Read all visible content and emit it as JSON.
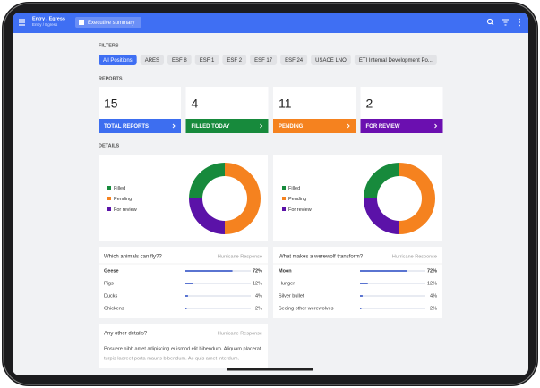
{
  "app_bar": {
    "title": "Entry / Egress",
    "subtitle": "Entry / Egress",
    "view": "Executive summary"
  },
  "filters": {
    "label": "FILTERS",
    "selected": 0,
    "chips": [
      "All Positions",
      "ARES",
      "ESF 8",
      "ESF 1",
      "ESF 2",
      "ESF 17",
      "ESF 24",
      "USACE LNO",
      "ETI Internal Development Po..."
    ]
  },
  "reports": {
    "label": "REPORTS",
    "cards": [
      {
        "count": 15,
        "label": "TOTAL REPORTS",
        "color": "#3d6ef0"
      },
      {
        "count": 4,
        "label": "FILLED TODAY",
        "color": "#178a3c"
      },
      {
        "count": 11,
        "label": "PENDING",
        "color": "#f5821f"
      },
      {
        "count": 2,
        "label": "FOR REVIEW",
        "color": "#6b0fb0"
      }
    ]
  },
  "details": {
    "label": "DETAILS",
    "donuts": [
      {
        "segments": [
          {
            "name": "Filled",
            "value": 25,
            "color": "#178a3c"
          },
          {
            "name": "Pending",
            "value": 50,
            "color": "#f5821f"
          },
          {
            "name": "For review",
            "value": 25,
            "color": "#5b12a8"
          }
        ]
      },
      {
        "segments": [
          {
            "name": "Filled",
            "value": 25,
            "color": "#178a3c"
          },
          {
            "name": "Pending",
            "value": 50,
            "color": "#f5821f"
          },
          {
            "name": "For review",
            "value": 25,
            "color": "#5b12a8"
          }
        ]
      }
    ],
    "polls": [
      {
        "question": "Which animals can fly??",
        "tag": "Hurricane Response",
        "options": [
          {
            "label": "Geese",
            "value": 72,
            "value_label": "72%"
          },
          {
            "label": "Pigs",
            "value": 12,
            "value_label": "12%"
          },
          {
            "label": "Ducks",
            "value": 4,
            "value_label": "4%"
          },
          {
            "label": "Chickens",
            "value": 2,
            "value_label": "2%"
          }
        ]
      },
      {
        "question": "What makes a werewolf transform?",
        "tag": "Hurricane Response",
        "options": [
          {
            "label": "Moon",
            "value": 72,
            "value_label": "72%"
          },
          {
            "label": "Hunger",
            "value": 12,
            "value_label": "12%"
          },
          {
            "label": "Silver bullet",
            "value": 4,
            "value_label": "4%"
          },
          {
            "label": "Seeing other werewolves",
            "value": 2,
            "value_label": "2%"
          }
        ]
      }
    ],
    "text_card": {
      "question": "Any other details?",
      "tag": "Hurricane Response",
      "lines": [
        "Posuere nibh amet adipiscing euismod elit bibendum. Aliquam placerat",
        "turpis laoreet porta mauris bibendum. Ac quis amet interdum."
      ]
    }
  }
}
